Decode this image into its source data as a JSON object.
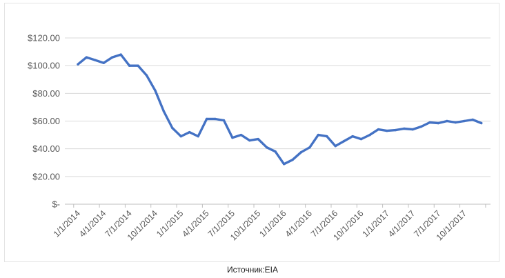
{
  "chart_data": {
    "type": "line",
    "title": "",
    "xlabel": "",
    "ylabel": "",
    "ylim": [
      0,
      120
    ],
    "y_ticks": [
      0,
      20,
      40,
      60,
      80,
      100,
      120
    ],
    "y_tick_labels": [
      "$-",
      "$20.00",
      "$40.00",
      "$60.00",
      "$80.00",
      "$100.00",
      "$120.00"
    ],
    "x_tick_labels": [
      "1/1/2014",
      "4/1/2014",
      "7/1/2014",
      "10/1/2014",
      "1/1/2015",
      "4/1/2015",
      "7/1/2015",
      "10/1/2015",
      "1/1/2016",
      "4/1/2016",
      "7/1/2016",
      "10/1/2016",
      "1/1/2017",
      "4/1/2017",
      "7/1/2017",
      "10/1/2017"
    ],
    "grid": true,
    "line_color": "#4472c4",
    "x": [
      "1/1/2014",
      "2/1/2014",
      "3/1/2014",
      "4/1/2014",
      "5/1/2014",
      "6/1/2014",
      "7/1/2014",
      "8/1/2014",
      "9/1/2014",
      "10/1/2014",
      "11/1/2014",
      "12/1/2014",
      "1/1/2015",
      "2/1/2015",
      "3/1/2015",
      "4/1/2015",
      "5/1/2015",
      "6/1/2015",
      "7/1/2015",
      "8/1/2015",
      "9/1/2015",
      "10/1/2015",
      "11/1/2015",
      "12/1/2015",
      "1/1/2016",
      "2/1/2016",
      "3/1/2016",
      "4/1/2016",
      "5/1/2016",
      "6/1/2016",
      "7/1/2016",
      "8/1/2016",
      "9/1/2016",
      "10/1/2016",
      "11/1/2016",
      "12/1/2016",
      "1/1/2017",
      "2/1/2017",
      "3/1/2017",
      "4/1/2017",
      "5/1/2017",
      "6/1/2017",
      "7/1/2017",
      "8/1/2017",
      "9/1/2017",
      "10/1/2017",
      "11/1/2017",
      "12/1/2017"
    ],
    "series": [
      {
        "values": [
          101,
          106,
          104,
          102,
          106,
          108,
          100,
          100,
          93,
          82,
          67,
          55,
          49,
          52,
          49,
          61.5,
          61.5,
          60.5,
          48,
          50,
          46,
          47,
          41,
          38,
          29,
          32,
          37.5,
          41,
          50,
          49,
          42,
          45.5,
          49,
          47,
          50,
          54,
          53,
          53.5,
          54.5,
          54,
          56,
          59,
          58.5,
          60,
          59,
          60,
          61,
          58.5
        ]
      }
    ]
  },
  "source": "Источник:EIA"
}
